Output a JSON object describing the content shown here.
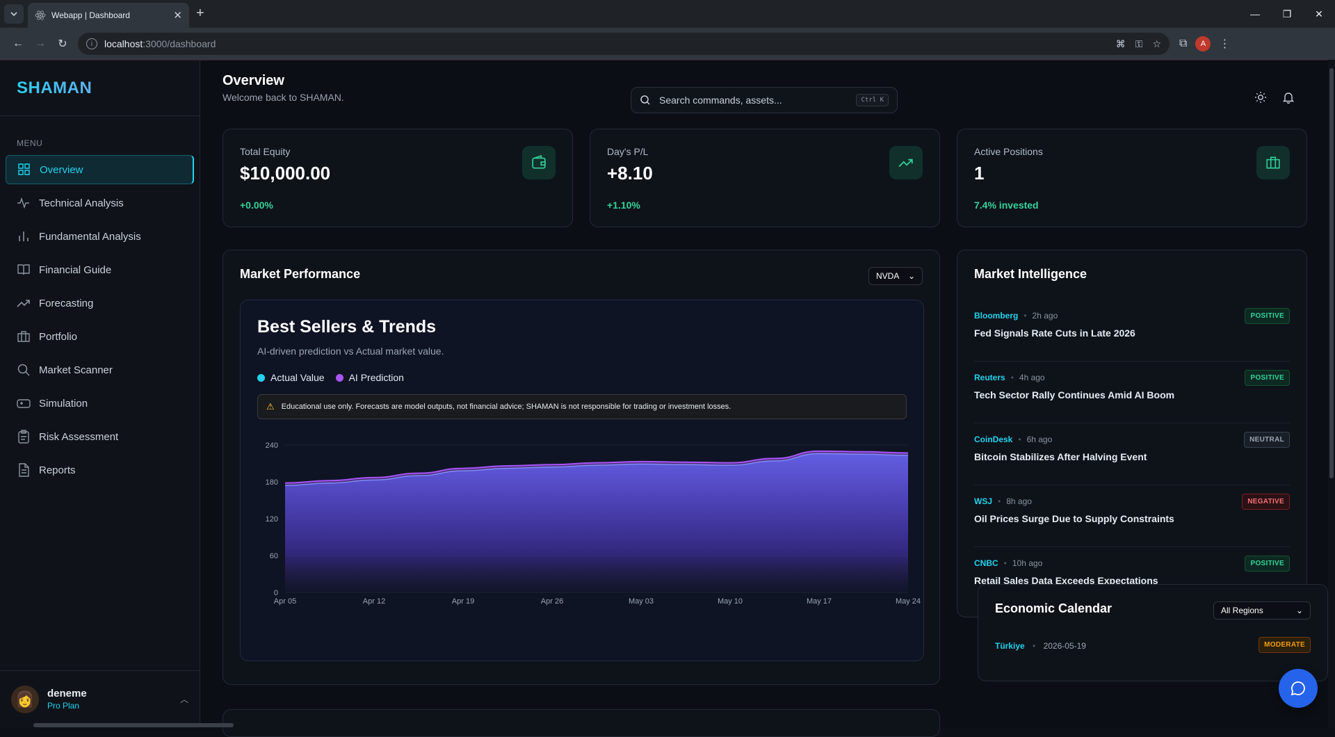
{
  "browser": {
    "tab_title": "Webapp | Dashboard",
    "url_host": "localhost",
    "url_path": ":3000/dashboard",
    "profile_initial": "A"
  },
  "app": {
    "brand": "SHAMAN",
    "menu_title": "MENU",
    "nav": [
      {
        "label": "Overview",
        "icon": "grid-icon",
        "active": true
      },
      {
        "label": "Technical Analysis",
        "icon": "activity-icon"
      },
      {
        "label": "Fundamental Analysis",
        "icon": "bar-chart-icon"
      },
      {
        "label": "Financial Guide",
        "icon": "book-icon"
      },
      {
        "label": "Forecasting",
        "icon": "trending-up-icon"
      },
      {
        "label": "Portfolio",
        "icon": "briefcase-icon"
      },
      {
        "label": "Market Scanner",
        "icon": "search-icon"
      },
      {
        "label": "Simulation",
        "icon": "gamepad-icon"
      },
      {
        "label": "Risk Assessment",
        "icon": "clipboard-icon"
      },
      {
        "label": "Reports",
        "icon": "file-text-icon"
      }
    ],
    "user": {
      "name": "deneme",
      "plan": "Pro Plan"
    }
  },
  "header": {
    "title": "Overview",
    "subtitle": "Welcome back to SHAMAN.",
    "search_placeholder": "Search commands, assets...",
    "search_shortcut": "Ctrl K"
  },
  "cards": [
    {
      "label": "Total Equity",
      "value": "$10,000.00",
      "sub": "+0.00%",
      "icon": "wallet-icon"
    },
    {
      "label": "Day's P/L",
      "value": "+8.10",
      "sub": "+1.10%",
      "icon": "trending-up-icon"
    },
    {
      "label": "Active Positions",
      "value": "1",
      "sub": "7.4% invested",
      "icon": "briefcase-icon"
    }
  ],
  "performance": {
    "title": "Market Performance",
    "ticker": "NVDA",
    "chart_title": "Best Sellers & Trends",
    "chart_desc": "AI-driven prediction vs Actual market value.",
    "legend_actual": "Actual Value",
    "legend_pred": "AI Prediction",
    "warning": "Educational use only. Forecasts are model outputs, not financial advice; SHAMAN is not responsible for trading or investment losses."
  },
  "chart_data": {
    "type": "area",
    "x": [
      "Apr 05",
      "Apr 08",
      "Apr 12",
      "Apr 15",
      "Apr 19",
      "Apr 22",
      "Apr 26",
      "Apr 29",
      "May 03",
      "May 06",
      "May 10",
      "May 13",
      "May 17",
      "May 20",
      "May 24"
    ],
    "x_ticks": [
      "Apr 05",
      "Apr 12",
      "Apr 19",
      "Apr 26",
      "May 03",
      "May 10",
      "May 17",
      "May 24"
    ],
    "ylim": [
      0,
      240
    ],
    "y_ticks": [
      0,
      60,
      120,
      180,
      240
    ],
    "series": [
      {
        "name": "Actual Value",
        "color": "#22d3ee",
        "values": [
          174,
          178,
          183,
          190,
          198,
          202,
          204,
          207,
          209,
          208,
          207,
          214,
          226,
          225,
          223
        ]
      },
      {
        "name": "AI Prediction",
        "color": "#a855f7",
        "values": [
          178,
          182,
          187,
          194,
          202,
          206,
          208,
          211,
          213,
          212,
          211,
          218,
          230,
          229,
          227
        ]
      }
    ]
  },
  "intel": {
    "title": "Market Intelligence",
    "items": [
      {
        "source": "Bloomberg",
        "time": "2h ago",
        "headline": "Fed Signals Rate Cuts in Late 2026",
        "sentiment": "POSITIVE"
      },
      {
        "source": "Reuters",
        "time": "4h ago",
        "headline": "Tech Sector Rally Continues Amid AI Boom",
        "sentiment": "POSITIVE"
      },
      {
        "source": "CoinDesk",
        "time": "6h ago",
        "headline": "Bitcoin Stabilizes After Halving Event",
        "sentiment": "NEUTRAL"
      },
      {
        "source": "WSJ",
        "time": "8h ago",
        "headline": "Oil Prices Surge Due to Supply Constraints",
        "sentiment": "NEGATIVE"
      },
      {
        "source": "CNBC",
        "time": "10h ago",
        "headline": "Retail Sales Data Exceeds Expectations",
        "sentiment": "POSITIVE"
      }
    ]
  },
  "econ": {
    "title": "Economic Calendar",
    "region": "All Regions",
    "first": {
      "country": "Türkiye",
      "date": "2026-05-19",
      "impact": "MODERATE"
    }
  }
}
